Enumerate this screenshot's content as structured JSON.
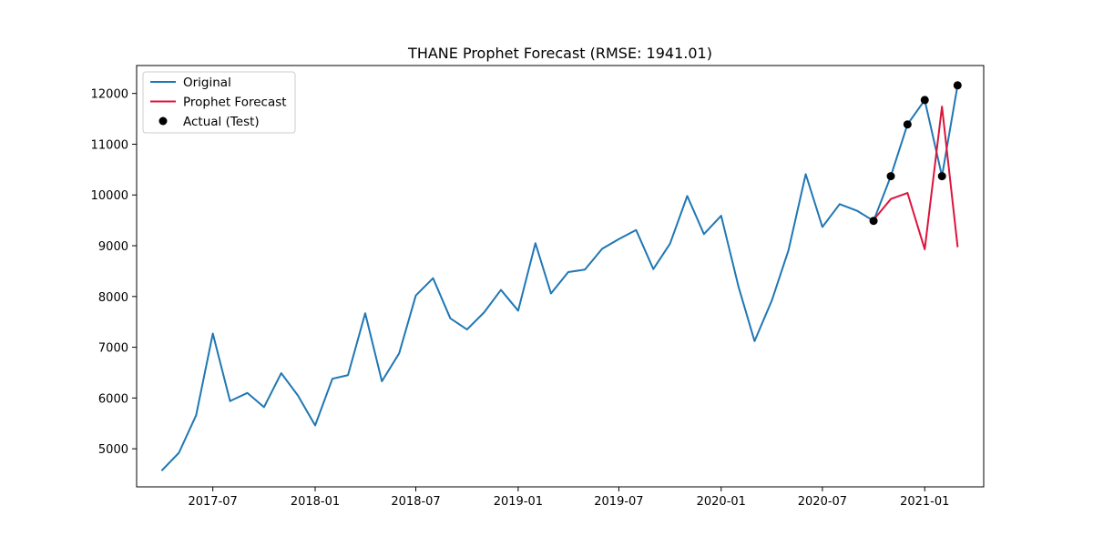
{
  "chart_data": {
    "type": "line",
    "title": "THANE Prophet Forecast (RMSE: 1941.01)",
    "xlabel": "",
    "ylabel": "",
    "xlim": [
      "2017-02-14",
      "2021-04-17"
    ],
    "ylim": [
      4250,
      12550
    ],
    "x_ticks": [
      "2017-07-01",
      "2018-01-01",
      "2018-07-01",
      "2019-01-01",
      "2019-07-01",
      "2020-01-01",
      "2020-07-01",
      "2021-01-01"
    ],
    "x_tick_labels": [
      "2017-07",
      "2018-01",
      "2018-07",
      "2019-01",
      "2019-07",
      "2020-01",
      "2020-07",
      "2021-01"
    ],
    "y_ticks": [
      5000,
      6000,
      7000,
      8000,
      9000,
      10000,
      11000,
      12000
    ],
    "y_tick_labels": [
      "5000",
      "6000",
      "7000",
      "8000",
      "9000",
      "10000",
      "11000",
      "12000"
    ],
    "grid": false,
    "legend_position": "top-left",
    "series": [
      {
        "name": "Original",
        "kind": "line",
        "color": "#1f77b4",
        "x": [
          "2017-04-01",
          "2017-05-01",
          "2017-06-01",
          "2017-07-01",
          "2017-08-01",
          "2017-09-01",
          "2017-10-01",
          "2017-11-01",
          "2017-12-01",
          "2018-01-01",
          "2018-02-01",
          "2018-03-01",
          "2018-04-01",
          "2018-05-01",
          "2018-06-01",
          "2018-07-01",
          "2018-08-01",
          "2018-09-01",
          "2018-10-01",
          "2018-11-01",
          "2018-12-01",
          "2019-01-01",
          "2019-02-01",
          "2019-03-01",
          "2019-04-01",
          "2019-05-01",
          "2019-06-01",
          "2019-07-01",
          "2019-08-01",
          "2019-09-01",
          "2019-10-01",
          "2019-11-01",
          "2019-12-01",
          "2020-01-01",
          "2020-02-01",
          "2020-03-01",
          "2020-04-01",
          "2020-05-01",
          "2020-06-01",
          "2020-07-01",
          "2020-08-01",
          "2020-09-01",
          "2020-10-01",
          "2020-11-01",
          "2020-12-01",
          "2021-01-01",
          "2021-02-01",
          "2021-03-01"
        ],
        "y": [
          4580,
          4920,
          5660,
          7270,
          5940,
          6100,
          5820,
          6490,
          6050,
          5460,
          6380,
          6450,
          7670,
          6330,
          6880,
          8020,
          8360,
          7570,
          7350,
          7690,
          8130,
          7720,
          9050,
          8060,
          8480,
          8530,
          8940,
          9130,
          9310,
          8540,
          9040,
          9980,
          9230,
          9590,
          8200,
          7120,
          7920,
          8910,
          10410,
          9370,
          9820,
          9690,
          9490,
          10370,
          11390,
          11870,
          10370,
          12160
        ]
      },
      {
        "name": "Prophet Forecast",
        "kind": "line",
        "color": "#dc143c",
        "x": [
          "2020-10-01",
          "2020-11-01",
          "2020-12-01",
          "2021-01-01",
          "2021-02-01",
          "2021-03-01"
        ],
        "y": [
          9510,
          9920,
          10040,
          8930,
          11740,
          8990
        ]
      },
      {
        "name": "Actual (Test)",
        "kind": "scatter",
        "color": "#000000",
        "x": [
          "2020-10-01",
          "2020-11-01",
          "2020-12-01",
          "2021-01-01",
          "2021-02-01",
          "2021-03-01"
        ],
        "y": [
          9490,
          10370,
          11390,
          11870,
          10370,
          12160
        ]
      }
    ]
  }
}
